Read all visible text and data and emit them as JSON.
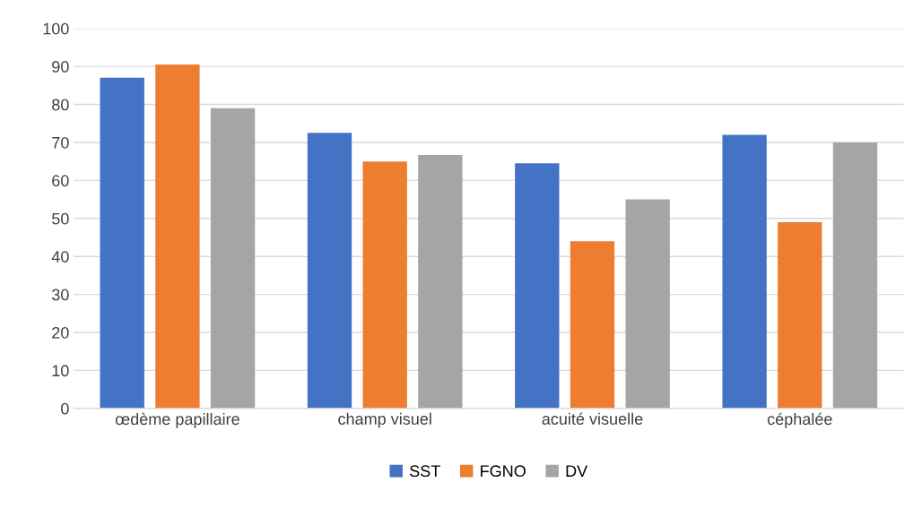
{
  "chart_data": {
    "type": "bar",
    "categories": [
      "œdème papillaire",
      "champ visuel",
      "acuité visuelle",
      "céphalée"
    ],
    "series": [
      {
        "name": "SST",
        "color": "#4472c4",
        "values": [
          87,
          72.5,
          64.5,
          72
        ]
      },
      {
        "name": "FGNO",
        "color": "#ed7d31",
        "values": [
          90.5,
          65,
          44,
          49
        ]
      },
      {
        "name": "DV",
        "color": "#a5a5a5",
        "values": [
          79,
          66.7,
          55,
          70
        ]
      }
    ],
    "ylim": [
      0,
      100
    ],
    "yticks": [
      0,
      10,
      20,
      30,
      40,
      50,
      60,
      70,
      80,
      90,
      100
    ],
    "grid": "y",
    "legend": "bottom"
  }
}
